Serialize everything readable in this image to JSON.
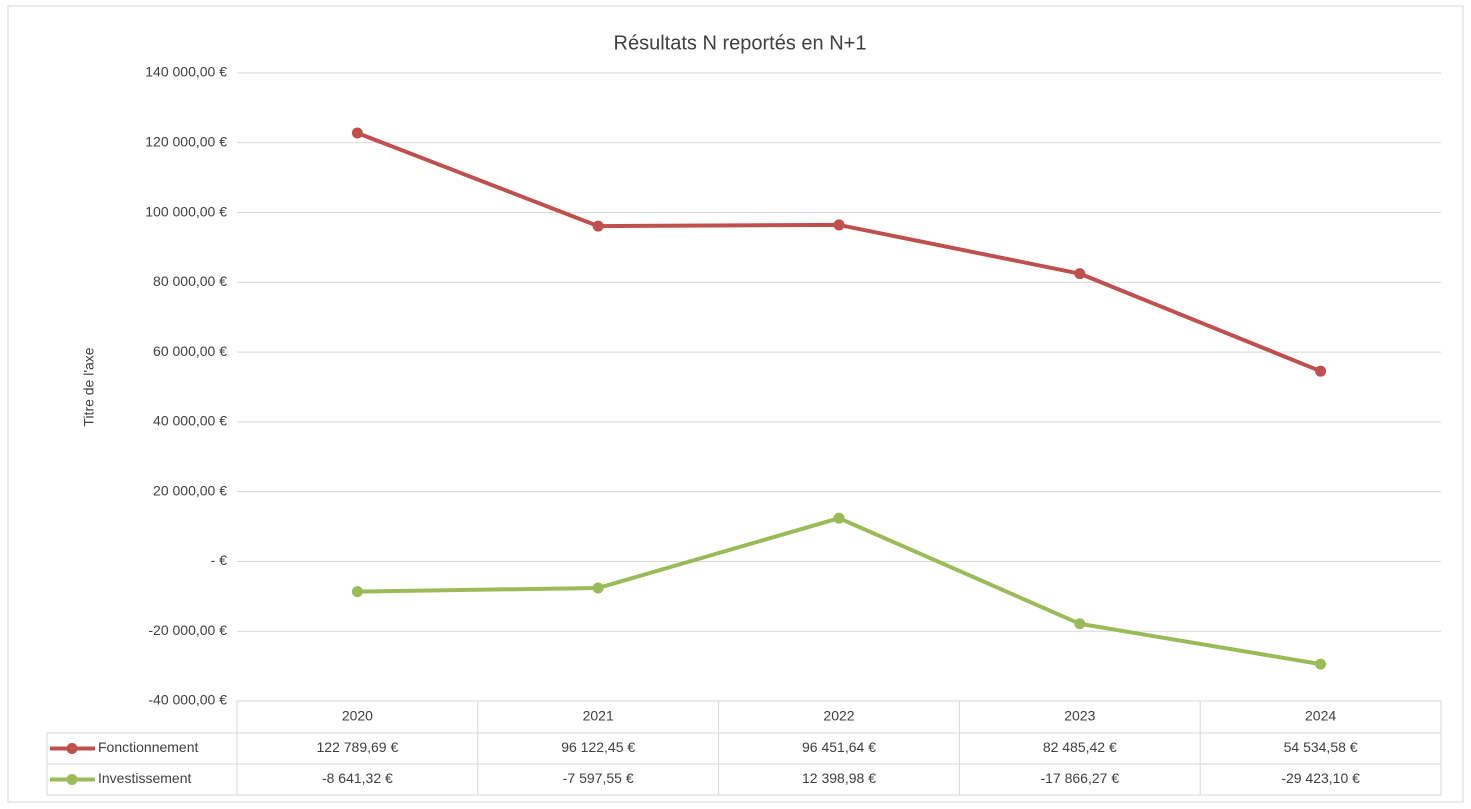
{
  "chart_data": {
    "type": "line",
    "title": "Résultats N reportés en N+1",
    "y_label": "Titre de l'axe",
    "categories": [
      "2020",
      "2021",
      "2022",
      "2023",
      "2024"
    ],
    "series": [
      {
        "name": "Fonctionnement",
        "color": "#c0504d",
        "values": [
          122789.69,
          96122.45,
          96451.64,
          82485.42,
          54534.58
        ],
        "value_labels": [
          "122 789,69 €",
          "96 122,45 €",
          "96 451,64 €",
          "82 485,42 €",
          "54 534,58 €"
        ]
      },
      {
        "name": "Investissement",
        "color": "#9bbb59",
        "values": [
          -8641.32,
          -7597.55,
          12398.98,
          -17866.27,
          -29423.1
        ],
        "value_labels": [
          "-8 641,32 €",
          "-7 597,55 €",
          "12 398,98 €",
          "-17 866,27 €",
          "-29 423,10 €"
        ]
      }
    ],
    "ylim": [
      -40000,
      140000
    ],
    "yticks": [
      {
        "value": -40000,
        "label": "-40 000,00 €"
      },
      {
        "value": -20000,
        "label": "-20 000,00 €"
      },
      {
        "value": 0,
        "label": "-  €"
      },
      {
        "value": 20000,
        "label": "20 000,00 €"
      },
      {
        "value": 40000,
        "label": "40 000,00 €"
      },
      {
        "value": 60000,
        "label": "60 000,00 €"
      },
      {
        "value": 80000,
        "label": "80 000,00 €"
      },
      {
        "value": 100000,
        "label": "100 000,00 €"
      },
      {
        "value": 120000,
        "label": "120 000,00 €"
      },
      {
        "value": 140000,
        "label": "140 000,00 €"
      }
    ],
    "grid": true,
    "data_table": true
  }
}
